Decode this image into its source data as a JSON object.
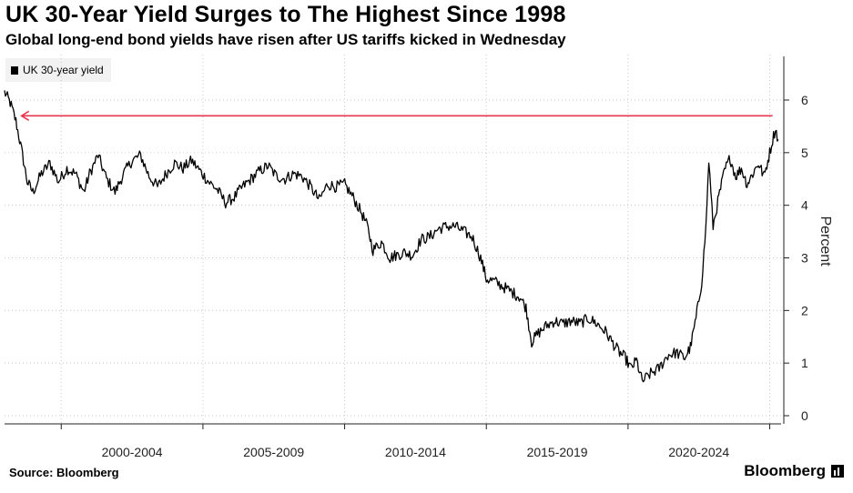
{
  "header": {
    "title": "UK 30-Year Yield Surges to The Highest Since 1998",
    "subtitle": "Global long-end bond yields have risen after US tariffs kicked in Wednesday"
  },
  "footer": {
    "source": "Source: Bloomberg",
    "brand": "Bloomberg"
  },
  "colors": {
    "line": "#000000",
    "arrow": "#e8344e",
    "grid": "#c8c8c8"
  },
  "chart_data": {
    "type": "line",
    "title": "UK 30-Year Yield Surges to The Highest Since 1998",
    "subtitle": "Global long-end bond yields have risen after US tariffs kicked in Wednesday",
    "ylabel": "Percent",
    "ylim": [
      0,
      6.5
    ],
    "xlim": [
      1998.0,
      2025.4
    ],
    "y_ticks": [
      0,
      1,
      2,
      3,
      4,
      5,
      6
    ],
    "y_tick_labels": [
      "0",
      "1",
      "2",
      "3",
      "4",
      "5",
      "6"
    ],
    "x_period_labels": [
      "2000-2004",
      "2005-2009",
      "2010-2014",
      "2015-2019",
      "2020-2024"
    ],
    "x_period_centers": [
      2002.5,
      2007.5,
      2012.5,
      2017.5,
      2022.5
    ],
    "x_period_boundaries": [
      2000,
      2005,
      2010,
      2015,
      2020,
      2025
    ],
    "grid": true,
    "legend_position": "top-left",
    "series": [
      {
        "name": "UK 30-year yield",
        "x": [
          1998.0,
          1998.2,
          1998.4,
          1998.6,
          1998.8,
          1999.0,
          1999.3,
          1999.6,
          1999.9,
          2000.2,
          2000.5,
          2000.8,
          2001.0,
          2001.3,
          2001.6,
          2001.9,
          2002.2,
          2002.5,
          2002.8,
          2003.1,
          2003.4,
          2003.7,
          2004.0,
          2004.3,
          2004.6,
          2004.9,
          2005.2,
          2005.5,
          2005.8,
          2006.1,
          2006.4,
          2006.7,
          2007.0,
          2007.3,
          2007.6,
          2007.9,
          2008.2,
          2008.5,
          2008.8,
          2009.1,
          2009.4,
          2009.7,
          2010.0,
          2010.3,
          2010.6,
          2010.8,
          2011.0,
          2011.3,
          2011.6,
          2011.8,
          2012.1,
          2012.4,
          2012.7,
          2013.0,
          2013.3,
          2013.6,
          2013.9,
          2014.2,
          2014.5,
          2014.8,
          2015.0,
          2015.3,
          2015.6,
          2015.9,
          2016.2,
          2016.4,
          2016.6,
          2016.8,
          2017.1,
          2017.4,
          2017.7,
          2018.0,
          2018.3,
          2018.6,
          2018.9,
          2019.2,
          2019.5,
          2019.7,
          2019.9,
          2020.1,
          2020.3,
          2020.5,
          2020.8,
          2021.1,
          2021.4,
          2021.7,
          2022.0,
          2022.2,
          2022.4,
          2022.6,
          2022.75,
          2022.85,
          2023.0,
          2023.2,
          2023.4,
          2023.6,
          2023.8,
          2024.0,
          2024.2,
          2024.4,
          2024.6,
          2024.8,
          2025.0,
          2025.1,
          2025.2,
          2025.3
        ],
        "values": [
          6.15,
          5.95,
          5.6,
          5.05,
          4.45,
          4.25,
          4.6,
          4.8,
          4.45,
          4.7,
          4.6,
          4.25,
          4.6,
          4.95,
          4.5,
          4.25,
          4.6,
          4.85,
          4.95,
          4.55,
          4.35,
          4.6,
          4.8,
          4.7,
          4.85,
          4.65,
          4.45,
          4.3,
          4.05,
          4.15,
          4.35,
          4.5,
          4.65,
          4.75,
          4.55,
          4.5,
          4.6,
          4.55,
          4.35,
          4.1,
          4.4,
          4.35,
          4.4,
          4.15,
          3.85,
          3.6,
          3.15,
          3.3,
          3.0,
          3.05,
          3.1,
          3.05,
          3.35,
          3.4,
          3.55,
          3.6,
          3.6,
          3.5,
          3.4,
          3.0,
          2.6,
          2.55,
          2.45,
          2.35,
          2.25,
          2.05,
          1.4,
          1.55,
          1.7,
          1.8,
          1.75,
          1.8,
          1.75,
          1.85,
          1.75,
          1.6,
          1.35,
          1.2,
          1.1,
          0.9,
          1.05,
          0.65,
          0.8,
          0.9,
          1.15,
          1.2,
          1.1,
          1.3,
          1.85,
          2.55,
          3.6,
          4.85,
          3.6,
          4.15,
          4.65,
          4.9,
          4.55,
          4.7,
          4.4,
          4.6,
          4.8,
          4.55,
          5.0,
          5.25,
          5.45,
          5.25
        ]
      }
    ],
    "annotations": [
      {
        "type": "arrow",
        "y": 5.7,
        "x_from": 2025.1,
        "x_to": 1998.6,
        "direction": "left"
      }
    ]
  }
}
